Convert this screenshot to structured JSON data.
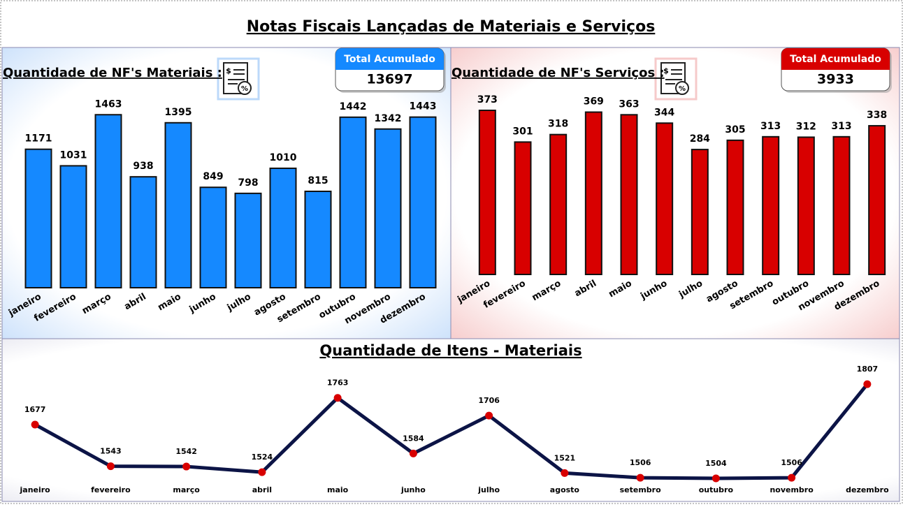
{
  "title": "Notas Fiscais Lançadas de Materiais e Serviços",
  "chart_data": [
    {
      "type": "bar",
      "title": "Quantidade de NF's Materiais :",
      "color": "#1589ff",
      "kpi": {
        "label": "Total Acumulado",
        "value": 13697,
        "color": "#1589ff"
      },
      "categories": [
        "janeiro",
        "fevereiro",
        "março",
        "abril",
        "maio",
        "junho",
        "julho",
        "agosto",
        "setembro",
        "outubro",
        "novembro",
        "dezembro"
      ],
      "values": [
        1171,
        1031,
        1463,
        938,
        1395,
        849,
        798,
        1010,
        815,
        1442,
        1342,
        1443
      ],
      "ylim": [
        0,
        1500
      ]
    },
    {
      "type": "bar",
      "title": "Quantidade de NF's Serviços :",
      "color": "#d80000",
      "kpi": {
        "label": "Total Acumulado",
        "value": 3933,
        "color": "#d80000"
      },
      "categories": [
        "janeiro",
        "fevereiro",
        "março",
        "abril",
        "maio",
        "junho",
        "julho",
        "agosto",
        "setembro",
        "outubro",
        "novembro",
        "dezembro"
      ],
      "values": [
        373,
        301,
        318,
        369,
        363,
        344,
        284,
        305,
        313,
        312,
        313,
        338
      ],
      "ylim": [
        0,
        400
      ]
    },
    {
      "type": "line",
      "title": "Quantidade de Itens - Materiais",
      "color": "#0c1446",
      "marker_color": "#d80000",
      "categories": [
        "janeiro",
        "fevereiro",
        "março",
        "abril",
        "maio",
        "junho",
        "julho",
        "agosto",
        "setembro",
        "outubro",
        "novembro",
        "dezembro"
      ],
      "values": [
        1677,
        1543,
        1542,
        1524,
        1763,
        1584,
        1706,
        1521,
        1506,
        1504,
        1506,
        1807
      ],
      "ylim": [
        1450,
        1850
      ]
    }
  ]
}
